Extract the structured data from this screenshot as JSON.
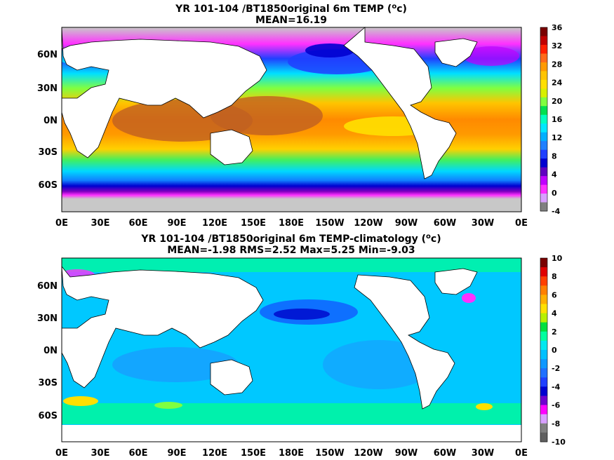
{
  "panels": [
    {
      "title_line1": "YR 101-104 /BT1850original 6m TEMP (",
      "title_super": "o",
      "title_unit_tail": "c)",
      "title_line2": "MEAN=16.19",
      "colorbar_labels": [
        "36",
        "32",
        "28",
        "24",
        "20",
        "16",
        "12",
        "8",
        "4",
        "0",
        "-4"
      ],
      "colorbar_colors": [
        "#7a0000",
        "#c00000",
        "#ff2000",
        "#ff6a1a",
        "#ff9a00",
        "#ffc400",
        "#ffe000",
        "#d8f000",
        "#80ff40",
        "#00e050",
        "#00ffc0",
        "#00e8ff",
        "#00b0ff",
        "#2080ff",
        "#2040ff",
        "#0000d0",
        "#6000c0",
        "#c000ff",
        "#ff30ff",
        "#d8a0ff",
        "#808080"
      ]
    },
    {
      "title_line1": "YR 101-104 /BT1850original 6m TEMP-climatology (",
      "title_super": "o",
      "title_unit_tail": "c)",
      "title_line2": "MEAN=-1.98   RMS=2.52   Max=5.25   Min=-9.03",
      "colorbar_labels": [
        "10",
        "8",
        "6",
        "4",
        "2",
        "0",
        "-2",
        "-4",
        "-6",
        "-8",
        "-10"
      ],
      "colorbar_colors": [
        "#7a0000",
        "#e00000",
        "#ff4000",
        "#ff8000",
        "#ffb000",
        "#ffe000",
        "#b8f000",
        "#00e040",
        "#00ffa0",
        "#00e8f0",
        "#00c0ff",
        "#1098ff",
        "#2070ff",
        "#2040ff",
        "#0000d0",
        "#7000d0",
        "#ff00ff",
        "#d8a0ff",
        "#808080",
        "#606060"
      ]
    }
  ],
  "lat_labels": [
    "60N",
    "30N",
    "0N",
    "30S",
    "60S"
  ],
  "lon_labels": [
    "0E",
    "30E",
    "60E",
    "90E",
    "120E",
    "150E",
    "180E",
    "150W",
    "120W",
    "90W",
    "60W",
    "30W",
    "0E"
  ],
  "colors": {
    "land": "#ffffff",
    "ice": "#c8c8c8",
    "coast": "#000000"
  }
}
